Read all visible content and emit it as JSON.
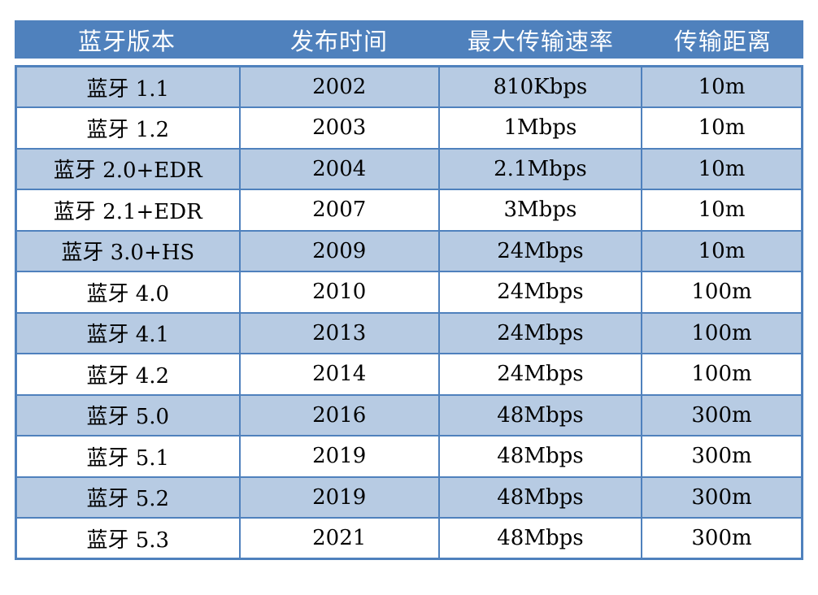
{
  "table": {
    "headers": [
      "蓝牙版本",
      "发布时间",
      "最大传输速率",
      "传输距离"
    ],
    "rows": [
      [
        "蓝牙 1.1",
        "2002",
        "810Kbps",
        "10m"
      ],
      [
        "蓝牙 1.2",
        "2003",
        "1Mbps",
        "10m"
      ],
      [
        "蓝牙 2.0+EDR",
        "2004",
        "2.1Mbps",
        "10m"
      ],
      [
        "蓝牙 2.1+EDR",
        "2007",
        "3Mbps",
        "10m"
      ],
      [
        "蓝牙 3.0+HS",
        "2009",
        "24Mbps",
        "10m"
      ],
      [
        "蓝牙 4.0",
        "2010",
        "24Mbps",
        "100m"
      ],
      [
        "蓝牙 4.1",
        "2013",
        "24Mbps",
        "100m"
      ],
      [
        "蓝牙 4.2",
        "2014",
        "24Mbps",
        "100m"
      ],
      [
        "蓝牙 5.0",
        "2016",
        "48Mbps",
        "300m"
      ],
      [
        "蓝牙 5.1",
        "2019",
        "48Mbps",
        "300m"
      ],
      [
        "蓝牙 5.2",
        "2019",
        "48Mbps",
        "300m"
      ],
      [
        "蓝牙 5.3",
        "2021",
        "48Mbps",
        "300m"
      ]
    ],
    "colors": {
      "header_bg": "#4f81bd",
      "header_text": "#ffffff",
      "row_stripe_bg": "#b7cbe3",
      "row_plain_bg": "#ffffff",
      "border": "#4f81bd",
      "body_text": "#000000"
    }
  }
}
